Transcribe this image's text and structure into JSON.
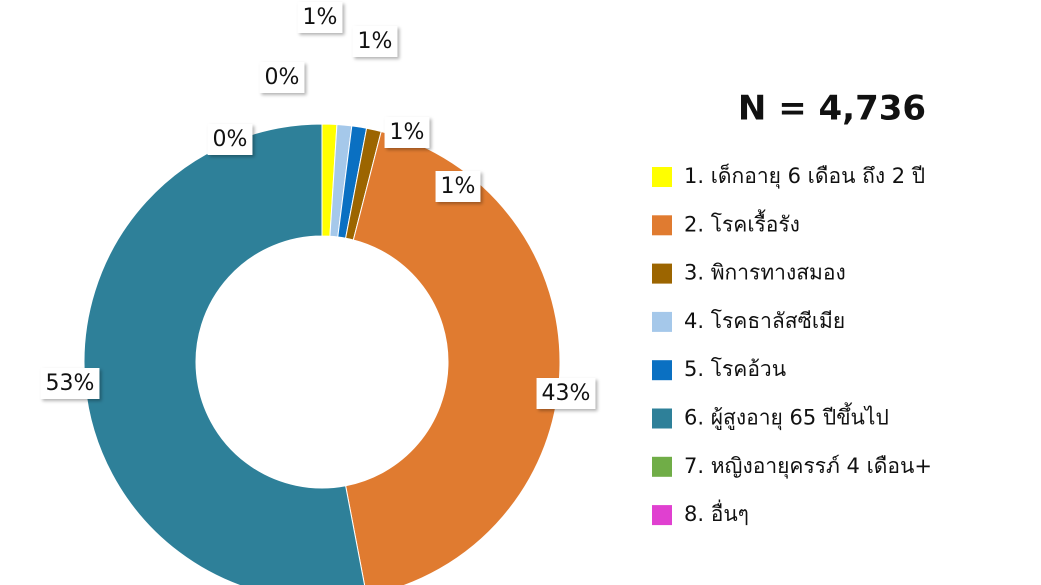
{
  "chart_data": {
    "type": "donut",
    "title": "N = 4,736",
    "categories": [
      "1. เด็กอายุ 6 เดือน ถึง 2 ปี",
      "2. โรคเรื้อรัง",
      "3. พิการทางสมอง",
      "4. โรคธาลัสซีเมีย",
      "5. โรคอ้วน",
      "6. ผู้สูงอายุ 65 ปีขึ้นไป",
      "7. หญิงอายุครรภ์ 4 เดือน+",
      "8. อื่นๆ"
    ],
    "values": [
      1,
      43,
      1,
      1,
      1,
      53,
      0,
      0
    ],
    "value_labels": [
      "1%",
      "43%",
      "1%",
      "1%",
      "1%",
      "53%",
      "0%",
      "0%"
    ],
    "colors": [
      "#ffff00",
      "#e07b30",
      "#9c6500",
      "#a5c8ea",
      "#0a70c2",
      "#2e8099",
      "#70ad47",
      "#e040d0"
    ]
  }
}
